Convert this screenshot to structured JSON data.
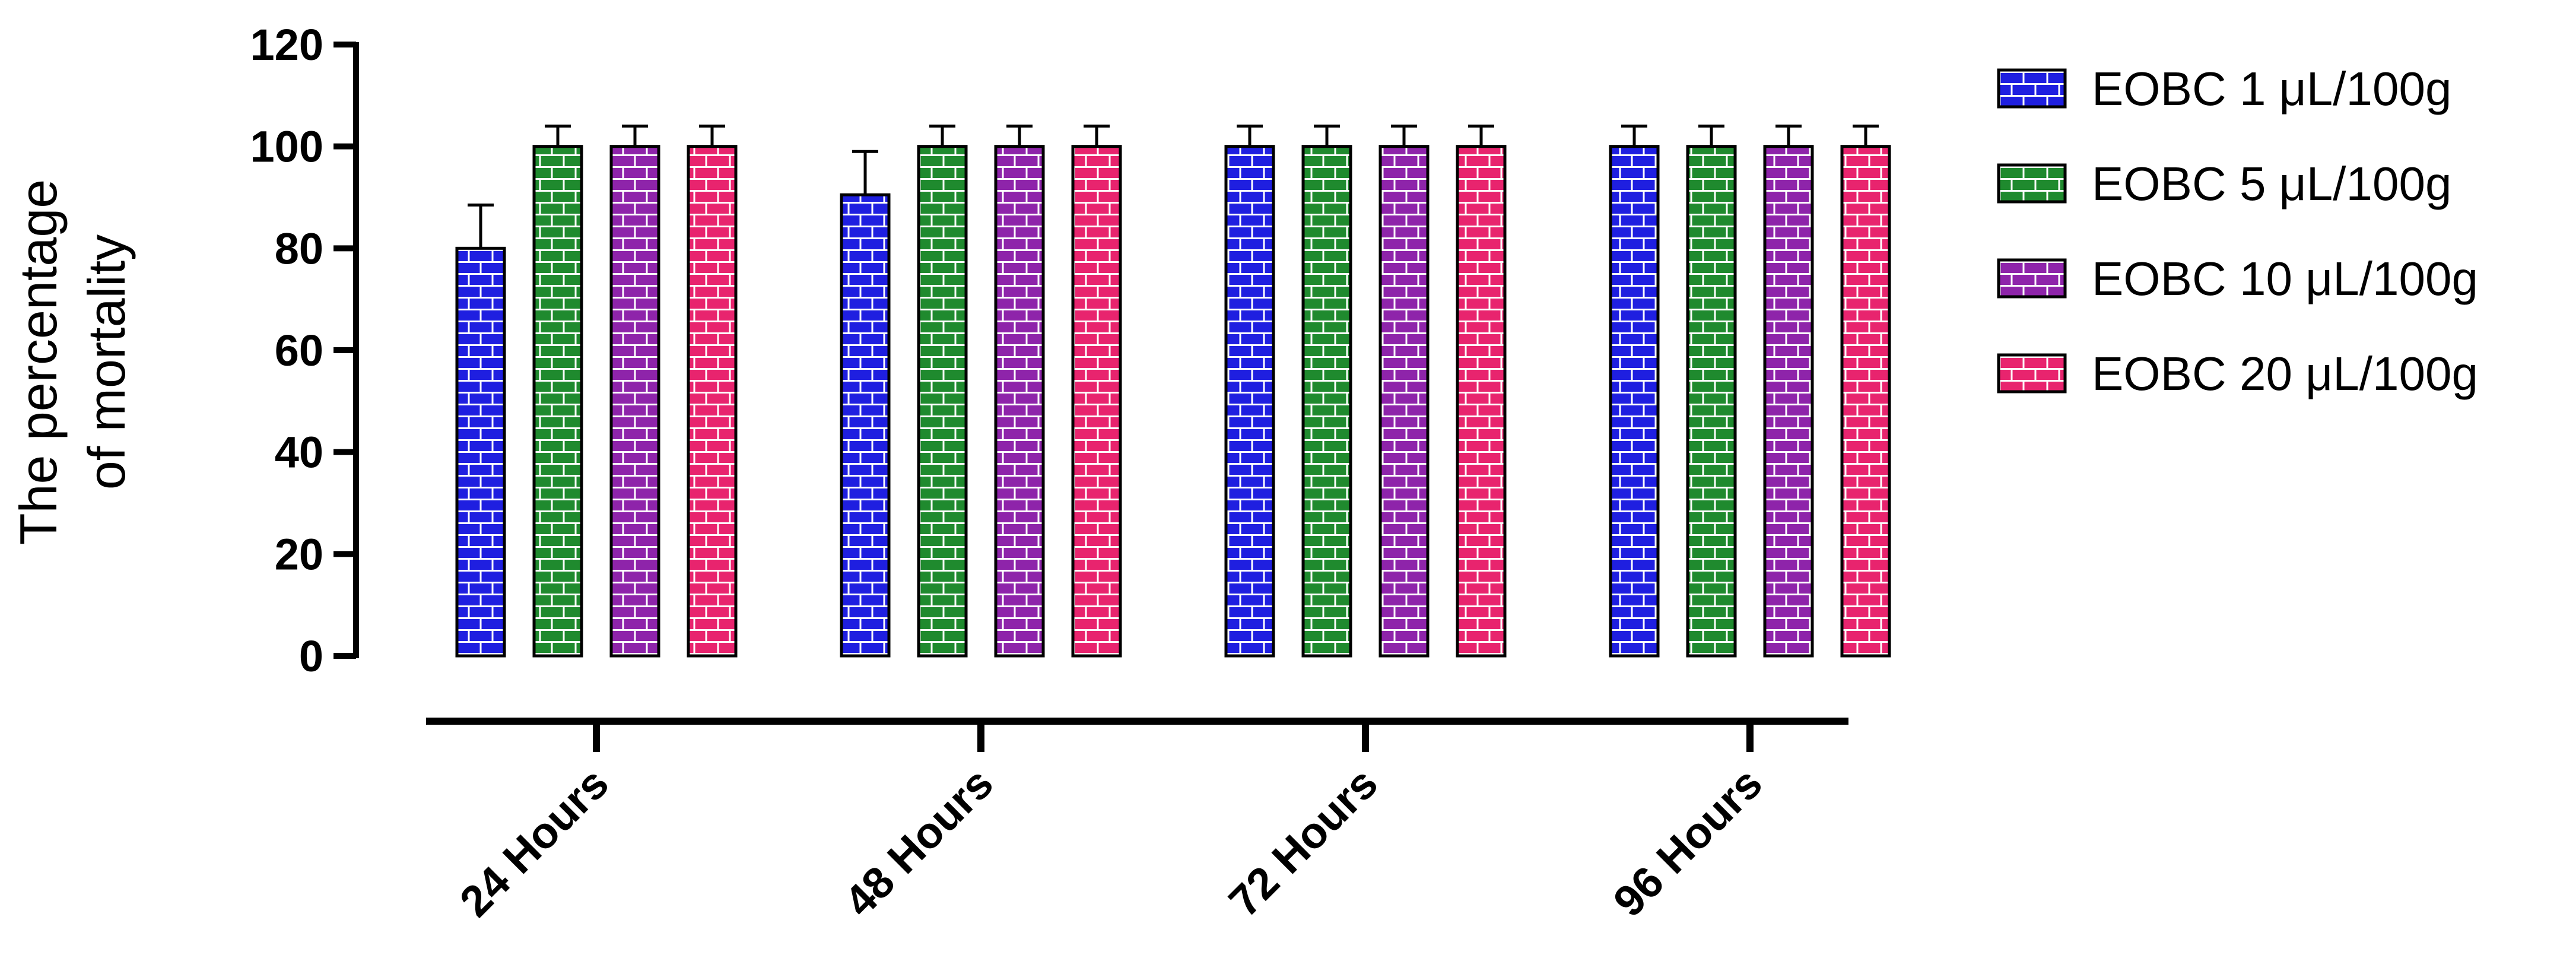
{
  "chart_data": {
    "type": "bar",
    "ylabel": [
      "The percentage",
      "of mortality"
    ],
    "xlabel": "",
    "ylim": [
      0,
      120
    ],
    "yticks": [
      0,
      20,
      40,
      60,
      80,
      100,
      120
    ],
    "categories": [
      "24 Hours",
      "48 Hours",
      "72 Hours",
      "96 Hours"
    ],
    "legend_position": "right",
    "grid": false,
    "series": [
      {
        "name": "EOBC 1 μL/100g",
        "color": "#1f1fe0",
        "values": [
          80,
          90.5,
          100,
          100
        ],
        "errors": [
          8.5,
          8.5,
          4,
          4
        ]
      },
      {
        "name": "EOBC 5 μL/100g",
        "color": "#1f8a2e",
        "values": [
          100,
          100,
          100,
          100
        ],
        "errors": [
          4,
          4,
          4,
          4
        ]
      },
      {
        "name": "EOBC 10 μL/100g",
        "color": "#8e24aa",
        "values": [
          100,
          100,
          100,
          100
        ],
        "errors": [
          4,
          4,
          4,
          4
        ]
      },
      {
        "name": "EOBC 20 μL/100g",
        "color": "#e8246e",
        "values": [
          100,
          100,
          100,
          100
        ],
        "errors": [
          4,
          4,
          4,
          4
        ]
      }
    ]
  }
}
